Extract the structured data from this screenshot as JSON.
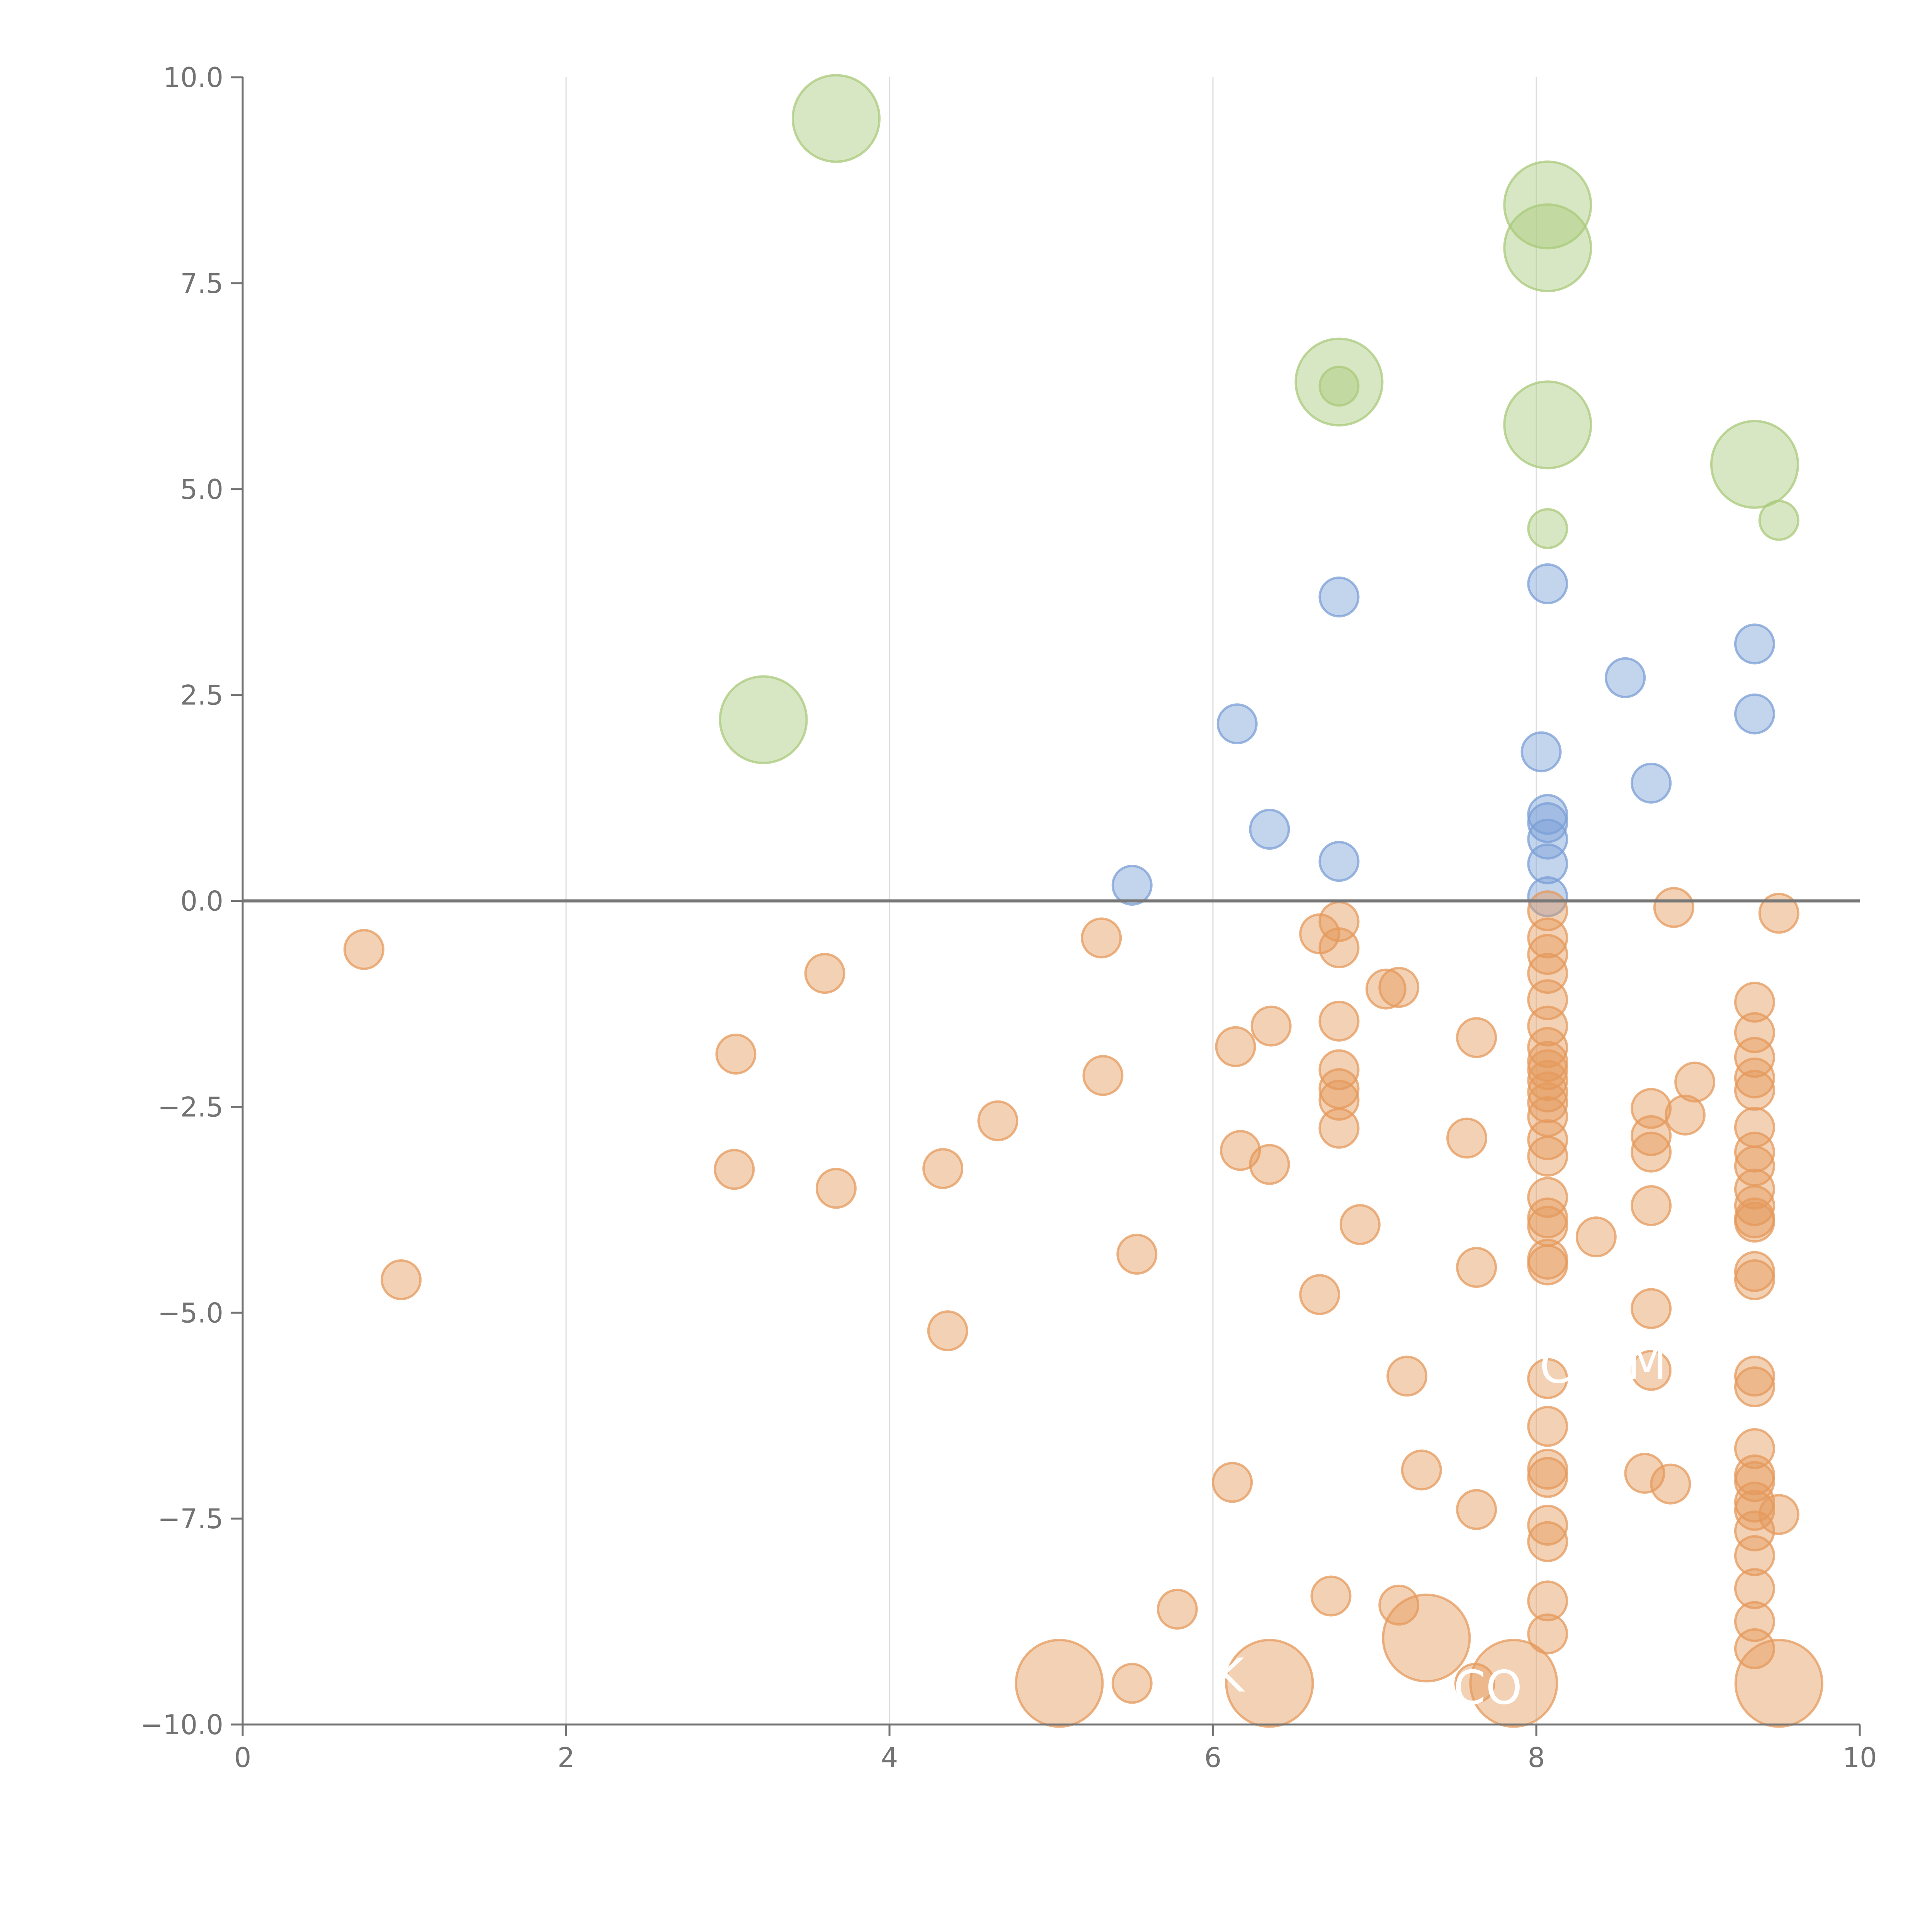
{
  "chart_data": {
    "type": "scatter",
    "title": "",
    "xlabel": "",
    "ylabel": "",
    "xlim": [
      0,
      10
    ],
    "ylim": [
      -10,
      10
    ],
    "x_ticks": [
      0,
      2,
      4,
      6,
      8,
      10
    ],
    "x_tick_labels": [
      "0",
      "2",
      "4",
      "6",
      "8",
      "10"
    ],
    "y_ticks": [
      10,
      7.5,
      5,
      2.5,
      0,
      -2.5,
      -5,
      -7.5,
      -10
    ],
    "y_tick_labels": [
      "10.0",
      "7.5",
      "5.0",
      "2.5",
      "0.0",
      "−2.5",
      "−5.0",
      "−7.5",
      "−10.0"
    ],
    "x_gridlines": [
      2,
      4,
      6,
      8
    ],
    "reference_line_y": 0,
    "colors": {
      "green": "#a9c97b",
      "blue": "#7b9fd6",
      "orange": "#e59a5c",
      "axis": "#737373",
      "grid": "#dddddd",
      "zero_line": "#777777"
    },
    "annotations": [
      {
        "text": "C",
        "x": 8.12,
        "y": -5.85
      },
      {
        "text": "MP",
        "x": 8.77,
        "y": -5.8
      },
      {
        "text": "K",
        "x": 6.1,
        "y": -9.6
      },
      {
        "text": "CO",
        "x": 7.7,
        "y": -9.75
      }
    ],
    "series": [
      {
        "name": "green",
        "color": "#a9c97b",
        "points": [
          {
            "x": 3.67,
            "y": 9.5,
            "s": "L"
          },
          {
            "x": 8.07,
            "y": 8.45,
            "s": "L"
          },
          {
            "x": 8.07,
            "y": 7.93,
            "s": "L"
          },
          {
            "x": 6.78,
            "y": 6.3,
            "s": "L"
          },
          {
            "x": 6.78,
            "y": 6.25,
            "s": "S"
          },
          {
            "x": 8.07,
            "y": 5.78,
            "s": "L"
          },
          {
            "x": 9.35,
            "y": 5.3,
            "s": "L"
          },
          {
            "x": 8.07,
            "y": 4.52,
            "s": "S"
          },
          {
            "x": 9.5,
            "y": 4.62,
            "s": "S"
          },
          {
            "x": 3.22,
            "y": 2.2,
            "s": "L"
          }
        ]
      },
      {
        "name": "blue",
        "color": "#7b9fd6",
        "points": [
          {
            "x": 6.78,
            "y": 3.69,
            "s": "S"
          },
          {
            "x": 8.07,
            "y": 3.85,
            "s": "S"
          },
          {
            "x": 9.35,
            "y": 3.12,
            "s": "S"
          },
          {
            "x": 8.55,
            "y": 2.71,
            "s": "S"
          },
          {
            "x": 9.35,
            "y": 2.27,
            "s": "S"
          },
          {
            "x": 6.15,
            "y": 2.15,
            "s": "S"
          },
          {
            "x": 8.03,
            "y": 1.81,
            "s": "S"
          },
          {
            "x": 8.71,
            "y": 1.43,
            "s": "S"
          },
          {
            "x": 8.07,
            "y": 1.05,
            "s": "S"
          },
          {
            "x": 8.07,
            "y": 0.95,
            "s": "S"
          },
          {
            "x": 8.07,
            "y": 0.75,
            "s": "S"
          },
          {
            "x": 6.35,
            "y": 0.87,
            "s": "S"
          },
          {
            "x": 6.78,
            "y": 0.48,
            "s": "S"
          },
          {
            "x": 8.07,
            "y": 0.45,
            "s": "S"
          },
          {
            "x": 8.07,
            "y": 0.05,
            "s": "S"
          },
          {
            "x": 5.5,
            "y": 0.19,
            "s": "S"
          }
        ]
      },
      {
        "name": "orange",
        "color": "#e59a5c",
        "points": [
          {
            "x": 0.75,
            "y": -0.59,
            "s": "S"
          },
          {
            "x": 0.98,
            "y": -4.6,
            "s": "S"
          },
          {
            "x": 3.05,
            "y": -1.86,
            "s": "S"
          },
          {
            "x": 3.04,
            "y": -3.26,
            "s": "S"
          },
          {
            "x": 3.6,
            "y": -0.88,
            "s": "S"
          },
          {
            "x": 3.67,
            "y": -3.49,
            "s": "S"
          },
          {
            "x": 4.33,
            "y": -3.25,
            "s": "S"
          },
          {
            "x": 4.36,
            "y": -5.22,
            "s": "S"
          },
          {
            "x": 4.67,
            "y": -2.67,
            "s": "S"
          },
          {
            "x": 5.31,
            "y": -0.45,
            "s": "S"
          },
          {
            "x": 5.32,
            "y": -2.12,
            "s": "S"
          },
          {
            "x": 5.53,
            "y": -4.29,
            "s": "S"
          },
          {
            "x": 5.5,
            "y": -9.5,
            "s": "S"
          },
          {
            "x": 5.05,
            "y": -9.5,
            "s": "L"
          },
          {
            "x": 5.78,
            "y": -8.6,
            "s": "S"
          },
          {
            "x": 6.14,
            "y": -1.77,
            "s": "S"
          },
          {
            "x": 6.17,
            "y": -3.03,
            "s": "S"
          },
          {
            "x": 6.12,
            "y": -7.06,
            "s": "S"
          },
          {
            "x": 6.36,
            "y": -1.52,
            "s": "S"
          },
          {
            "x": 6.35,
            "y": -3.2,
            "s": "S"
          },
          {
            "x": 6.35,
            "y": -9.5,
            "s": "L"
          },
          {
            "x": 6.66,
            "y": -0.4,
            "s": "S"
          },
          {
            "x": 6.66,
            "y": -4.78,
            "s": "S"
          },
          {
            "x": 6.73,
            "y": -8.44,
            "s": "S"
          },
          {
            "x": 6.78,
            "y": -0.25,
            "s": "S"
          },
          {
            "x": 6.78,
            "y": -0.57,
            "s": "S"
          },
          {
            "x": 6.78,
            "y": -1.46,
            "s": "S"
          },
          {
            "x": 6.78,
            "y": -2.05,
            "s": "S"
          },
          {
            "x": 6.78,
            "y": -2.28,
            "s": "S"
          },
          {
            "x": 6.78,
            "y": -2.42,
            "s": "S"
          },
          {
            "x": 6.78,
            "y": -2.76,
            "s": "S"
          },
          {
            "x": 6.91,
            "y": -3.93,
            "s": "S"
          },
          {
            "x": 7.07,
            "y": -1.07,
            "s": "S"
          },
          {
            "x": 7.15,
            "y": -1.05,
            "s": "S"
          },
          {
            "x": 7.2,
            "y": -5.77,
            "s": "S"
          },
          {
            "x": 7.29,
            "y": -6.91,
            "s": "S"
          },
          {
            "x": 7.15,
            "y": -8.55,
            "s": "S"
          },
          {
            "x": 7.32,
            "y": -8.95,
            "s": "L"
          },
          {
            "x": 7.57,
            "y": -2.88,
            "s": "S"
          },
          {
            "x": 7.63,
            "y": -1.66,
            "s": "S"
          },
          {
            "x": 7.63,
            "y": -4.45,
            "s": "S"
          },
          {
            "x": 7.63,
            "y": -7.39,
            "s": "S"
          },
          {
            "x": 7.62,
            "y": -9.5,
            "s": "S"
          },
          {
            "x": 7.86,
            "y": -9.5,
            "s": "L"
          },
          {
            "x": 8.07,
            "y": -0.12,
            "s": "S"
          },
          {
            "x": 8.07,
            "y": -0.45,
            "s": "S"
          },
          {
            "x": 8.07,
            "y": -0.65,
            "s": "S"
          },
          {
            "x": 8.07,
            "y": -0.88,
            "s": "S"
          },
          {
            "x": 8.07,
            "y": -1.2,
            "s": "S"
          },
          {
            "x": 8.07,
            "y": -1.52,
            "s": "S"
          },
          {
            "x": 8.07,
            "y": -1.78,
            "s": "S"
          },
          {
            "x": 8.07,
            "y": -1.95,
            "s": "S"
          },
          {
            "x": 8.07,
            "y": -2.05,
            "s": "S"
          },
          {
            "x": 8.07,
            "y": -2.18,
            "s": "S"
          },
          {
            "x": 8.07,
            "y": -2.32,
            "s": "S"
          },
          {
            "x": 8.07,
            "y": -2.45,
            "s": "S"
          },
          {
            "x": 8.07,
            "y": -2.62,
            "s": "S"
          },
          {
            "x": 8.07,
            "y": -2.9,
            "s": "S"
          },
          {
            "x": 8.07,
            "y": -3.1,
            "s": "S"
          },
          {
            "x": 8.07,
            "y": -3.6,
            "s": "S"
          },
          {
            "x": 8.07,
            "y": -3.85,
            "s": "S"
          },
          {
            "x": 8.07,
            "y": -3.95,
            "s": "S"
          },
          {
            "x": 8.07,
            "y": -4.35,
            "s": "S"
          },
          {
            "x": 8.07,
            "y": -4.42,
            "s": "S"
          },
          {
            "x": 8.07,
            "y": -5.8,
            "s": "S"
          },
          {
            "x": 8.07,
            "y": -6.38,
            "s": "S"
          },
          {
            "x": 8.07,
            "y": -6.9,
            "s": "S"
          },
          {
            "x": 8.07,
            "y": -7.0,
            "s": "S"
          },
          {
            "x": 8.07,
            "y": -7.58,
            "s": "S"
          },
          {
            "x": 8.07,
            "y": -7.78,
            "s": "S"
          },
          {
            "x": 8.07,
            "y": -8.5,
            "s": "S"
          },
          {
            "x": 8.07,
            "y": -8.9,
            "s": "S"
          },
          {
            "x": 8.37,
            "y": -4.08,
            "s": "S"
          },
          {
            "x": 8.71,
            "y": -2.52,
            "s": "S"
          },
          {
            "x": 8.71,
            "y": -2.85,
            "s": "S"
          },
          {
            "x": 8.71,
            "y": -3.05,
            "s": "S"
          },
          {
            "x": 8.71,
            "y": -3.7,
            "s": "S"
          },
          {
            "x": 8.71,
            "y": -4.95,
            "s": "S"
          },
          {
            "x": 8.71,
            "y": -5.7,
            "s": "S"
          },
          {
            "x": 8.67,
            "y": -6.95,
            "s": "S"
          },
          {
            "x": 8.83,
            "y": -7.08,
            "s": "S"
          },
          {
            "x": 8.85,
            "y": -0.08,
            "s": "S"
          },
          {
            "x": 8.92,
            "y": -2.6,
            "s": "S"
          },
          {
            "x": 8.98,
            "y": -2.2,
            "s": "S"
          },
          {
            "x": 9.35,
            "y": -1.23,
            "s": "S"
          },
          {
            "x": 9.35,
            "y": -1.6,
            "s": "S"
          },
          {
            "x": 9.35,
            "y": -1.9,
            "s": "S"
          },
          {
            "x": 9.35,
            "y": -2.15,
            "s": "S"
          },
          {
            "x": 9.35,
            "y": -2.3,
            "s": "S"
          },
          {
            "x": 9.35,
            "y": -2.75,
            "s": "S"
          },
          {
            "x": 9.35,
            "y": -3.05,
            "s": "S"
          },
          {
            "x": 9.35,
            "y": -3.22,
            "s": "S"
          },
          {
            "x": 9.35,
            "y": -3.5,
            "s": "S"
          },
          {
            "x": 9.35,
            "y": -3.7,
            "s": "S"
          },
          {
            "x": 9.35,
            "y": -3.85,
            "s": "S"
          },
          {
            "x": 9.35,
            "y": -3.9,
            "s": "S"
          },
          {
            "x": 9.35,
            "y": -4.5,
            "s": "S"
          },
          {
            "x": 9.35,
            "y": -4.6,
            "s": "S"
          },
          {
            "x": 9.35,
            "y": -5.77,
            "s": "S"
          },
          {
            "x": 9.35,
            "y": -5.9,
            "s": "S"
          },
          {
            "x": 9.35,
            "y": -6.65,
            "s": "S"
          },
          {
            "x": 9.35,
            "y": -6.97,
            "s": "S"
          },
          {
            "x": 9.35,
            "y": -7.05,
            "s": "S"
          },
          {
            "x": 9.35,
            "y": -7.3,
            "s": "S"
          },
          {
            "x": 9.35,
            "y": -7.4,
            "s": "S"
          },
          {
            "x": 9.35,
            "y": -7.65,
            "s": "S"
          },
          {
            "x": 9.35,
            "y": -7.95,
            "s": "S"
          },
          {
            "x": 9.35,
            "y": -8.35,
            "s": "S"
          },
          {
            "x": 9.35,
            "y": -8.75,
            "s": "S"
          },
          {
            "x": 9.35,
            "y": -9.08,
            "s": "S"
          },
          {
            "x": 9.5,
            "y": -0.15,
            "s": "S"
          },
          {
            "x": 9.5,
            "y": -7.45,
            "s": "S"
          },
          {
            "x": 9.5,
            "y": -9.5,
            "s": "L"
          }
        ]
      }
    ]
  }
}
